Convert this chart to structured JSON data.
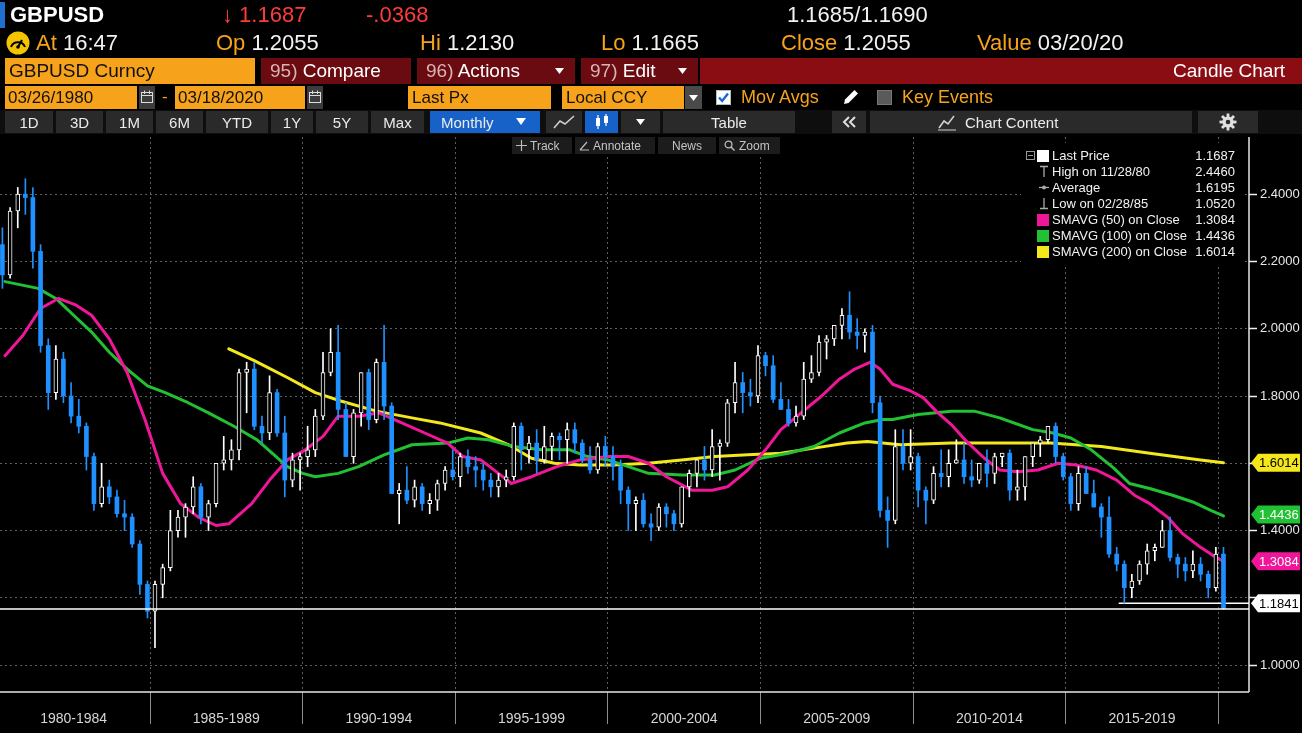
{
  "chart_data": {
    "type": "candlestick",
    "title": "GBPUSD",
    "annotations": [
      "↓ 1.1687",
      "-.0368",
      "1.1685/1.1690",
      "At 16:47",
      "Op 1.2055",
      "Hi 1.2130",
      "Lo 1.1665",
      "Close 1.2055",
      "Value 03/20/20",
      "GBPUSD Curncy",
      "95) Compare",
      "96) Actions",
      "97) Edit",
      "Candle Chart",
      "03/26/1980",
      "-",
      "03/18/2020",
      "Last Px",
      "Local CCY",
      "Mov Avgs",
      "Key Events",
      "1D",
      "3D",
      "1M",
      "6M",
      "YTD",
      "1Y",
      "5Y",
      "Max",
      "Monthly",
      "Table",
      "Chart Content",
      "Track",
      "Annotate",
      "News",
      "Zoom",
      "High on 11/28/80 2.4460",
      "Average 1.6195",
      "Low on 02/28/85 1.0520",
      "1.1687",
      "1.3084",
      "1.4436",
      "1.6014",
      "1.3084",
      "1.4436",
      "1.6014"
    ],
    "xlim": [
      "1980-02",
      "2021-01"
    ],
    "xticks": [
      {
        "value": "1982-07",
        "label": "1980-1984"
      },
      {
        "value": "1985-01",
        "label": null
      },
      {
        "value": "1987-07",
        "label": "1985-1989"
      },
      {
        "value": "1990-01",
        "label": null
      },
      {
        "value": "1992-07",
        "label": "1990-1994"
      },
      {
        "value": "1995-01",
        "label": null
      },
      {
        "value": "1997-07",
        "label": "1995-1999"
      },
      {
        "value": "2000-01",
        "label": null
      },
      {
        "value": "2002-07",
        "label": "2000-2004"
      },
      {
        "value": "2005-01",
        "label": null
      },
      {
        "value": "2007-07",
        "label": "2005-2009"
      },
      {
        "value": "2010-01",
        "label": null
      },
      {
        "value": "2012-07",
        "label": "2010-2014"
      },
      {
        "value": "2015-01",
        "label": null
      },
      {
        "value": "2017-07",
        "label": "2015-2019"
      },
      {
        "value": "2020-01",
        "label": null
      }
    ],
    "ylim": [
      0.92,
      2.57
    ],
    "yticks": [
      {
        "value": 1,
        "label": "1.0000"
      },
      {
        "value": 1.2,
        "label": null
      },
      {
        "value": 1.4,
        "label": "1.4000"
      },
      {
        "value": 1.6,
        "label": null
      },
      {
        "value": 1.8,
        "label": "1.8000"
      },
      {
        "value": 2,
        "label": "2.0000"
      },
      {
        "value": 2.2,
        "label": "2.2000"
      },
      {
        "value": 2.4,
        "label": "2.4000"
      }
    ],
    "grid": true,
    "legend": "top right",
    "ref_lines": [
      {
        "axis": "y",
        "value": 1.167,
        "color": "#ffffff"
      }
    ],
    "series": [
      {
        "name": "Last Price",
        "type": "candlestick",
        "color": "#ffffff",
        "x": [
          "1980-03",
          "1980-06",
          "1980-09",
          "1980-12",
          "1981-03",
          "1981-06",
          "1981-09",
          "1981-12",
          "1982-03",
          "1982-06",
          "1982-09",
          "1982-12",
          "1983-03",
          "1983-06",
          "1983-09",
          "1983-12",
          "1984-03",
          "1984-06",
          "1984-09",
          "1984-12",
          "1985-03",
          "1985-06",
          "1985-09",
          "1985-12",
          "1986-03",
          "1986-06",
          "1986-09",
          "1986-12",
          "1987-03",
          "1987-06",
          "1987-09",
          "1987-12",
          "1988-03",
          "1988-06",
          "1988-09",
          "1988-12",
          "1989-03",
          "1989-06",
          "1989-09",
          "1989-12",
          "1990-03",
          "1990-06",
          "1990-09",
          "1990-12",
          "1991-03",
          "1991-06",
          "1991-09",
          "1991-12",
          "1992-03",
          "1992-06",
          "1992-09",
          "1992-12",
          "1993-03",
          "1993-06",
          "1993-09",
          "1993-12",
          "1994-03",
          "1994-06",
          "1994-09",
          "1994-12",
          "1995-03",
          "1995-06",
          "1995-09",
          "1995-12",
          "1996-03",
          "1996-06",
          "1996-09",
          "1996-12",
          "1997-03",
          "1997-06",
          "1997-09",
          "1997-12",
          "1998-03",
          "1998-06",
          "1998-09",
          "1998-12",
          "1999-03",
          "1999-06",
          "1999-09",
          "1999-12",
          "2000-03",
          "2000-06",
          "2000-09",
          "2000-12",
          "2001-03",
          "2001-06",
          "2001-09",
          "2001-12",
          "2002-03",
          "2002-06",
          "2002-09",
          "2002-12",
          "2003-03",
          "2003-06",
          "2003-09",
          "2003-12",
          "2004-03",
          "2004-06",
          "2004-09",
          "2004-12",
          "2005-03",
          "2005-06",
          "2005-09",
          "2005-12",
          "2006-03",
          "2006-06",
          "2006-09",
          "2006-12",
          "2007-03",
          "2007-06",
          "2007-09",
          "2007-12",
          "2008-03",
          "2008-06",
          "2008-09",
          "2008-12",
          "2009-03",
          "2009-06",
          "2009-09",
          "2009-12",
          "2010-03",
          "2010-06",
          "2010-09",
          "2010-12",
          "2011-03",
          "2011-06",
          "2011-09",
          "2011-12",
          "2012-03",
          "2012-06",
          "2012-09",
          "2012-12",
          "2013-03",
          "2013-06",
          "2013-09",
          "2013-12",
          "2014-03",
          "2014-06",
          "2014-09",
          "2014-12",
          "2015-03",
          "2015-06",
          "2015-09",
          "2015-12",
          "2016-03",
          "2016-06",
          "2016-09",
          "2016-12",
          "2017-03",
          "2017-06",
          "2017-09",
          "2017-12",
          "2018-03",
          "2018-06",
          "2018-09",
          "2018-12",
          "2019-03",
          "2019-06",
          "2019-09",
          "2019-12",
          "2020-03"
        ],
        "ohlc": [
          [
            2.25,
            2.3,
            2.12,
            2.16
          ],
          [
            2.16,
            2.36,
            2.15,
            2.35
          ],
          [
            2.35,
            2.42,
            2.3,
            2.4
          ],
          [
            2.4,
            2.446,
            2.34,
            2.39
          ],
          [
            2.39,
            2.42,
            2.18,
            2.23
          ],
          [
            2.23,
            2.25,
            1.93,
            1.95
          ],
          [
            1.95,
            1.97,
            1.76,
            1.81
          ],
          [
            1.81,
            1.95,
            1.79,
            1.91
          ],
          [
            1.91,
            1.93,
            1.78,
            1.8
          ],
          [
            1.8,
            1.84,
            1.72,
            1.74
          ],
          [
            1.74,
            1.79,
            1.69,
            1.71
          ],
          [
            1.71,
            1.72,
            1.58,
            1.62
          ],
          [
            1.62,
            1.63,
            1.46,
            1.48
          ],
          [
            1.48,
            1.6,
            1.47,
            1.53
          ],
          [
            1.53,
            1.55,
            1.48,
            1.5
          ],
          [
            1.5,
            1.52,
            1.44,
            1.45
          ],
          [
            1.45,
            1.49,
            1.4,
            1.44
          ],
          [
            1.44,
            1.45,
            1.35,
            1.36
          ],
          [
            1.36,
            1.37,
            1.21,
            1.24
          ],
          [
            1.24,
            1.25,
            1.14,
            1.16
          ],
          [
            1.16,
            1.25,
            1.052,
            1.24
          ],
          [
            1.24,
            1.3,
            1.2,
            1.29
          ],
          [
            1.29,
            1.46,
            1.28,
            1.4
          ],
          [
            1.4,
            1.46,
            1.38,
            1.44
          ],
          [
            1.44,
            1.48,
            1.38,
            1.47
          ],
          [
            1.47,
            1.56,
            1.45,
            1.53
          ],
          [
            1.53,
            1.54,
            1.42,
            1.44
          ],
          [
            1.44,
            1.49,
            1.4,
            1.48
          ],
          [
            1.48,
            1.6,
            1.47,
            1.6
          ],
          [
            1.6,
            1.68,
            1.58,
            1.61
          ],
          [
            1.61,
            1.67,
            1.58,
            1.64
          ],
          [
            1.64,
            1.88,
            1.61,
            1.87
          ],
          [
            1.87,
            1.9,
            1.75,
            1.88
          ],
          [
            1.88,
            1.9,
            1.7,
            1.71
          ],
          [
            1.71,
            1.74,
            1.66,
            1.69
          ],
          [
            1.69,
            1.86,
            1.67,
            1.81
          ],
          [
            1.81,
            1.82,
            1.68,
            1.69
          ],
          [
            1.69,
            1.74,
            1.5,
            1.55
          ],
          [
            1.55,
            1.63,
            1.53,
            1.61
          ],
          [
            1.61,
            1.63,
            1.52,
            1.62
          ],
          [
            1.62,
            1.71,
            1.59,
            1.64
          ],
          [
            1.64,
            1.76,
            1.62,
            1.74
          ],
          [
            1.74,
            1.93,
            1.73,
            1.87
          ],
          [
            1.87,
            2.0,
            1.86,
            1.93
          ],
          [
            1.93,
            2.01,
            1.73,
            1.76
          ],
          [
            1.76,
            1.78,
            1.62,
            1.62
          ],
          [
            1.62,
            1.76,
            1.6,
            1.75
          ],
          [
            1.75,
            1.87,
            1.71,
            1.87
          ],
          [
            1.87,
            1.88,
            1.7,
            1.73
          ],
          [
            1.73,
            1.91,
            1.72,
            1.9
          ],
          [
            1.9,
            2.01,
            1.73,
            1.77
          ],
          [
            1.77,
            1.78,
            1.51,
            1.51
          ],
          [
            1.51,
            1.54,
            1.42,
            1.52
          ],
          [
            1.52,
            1.59,
            1.48,
            1.49
          ],
          [
            1.49,
            1.55,
            1.47,
            1.53
          ],
          [
            1.53,
            1.54,
            1.46,
            1.48
          ],
          [
            1.48,
            1.51,
            1.45,
            1.49
          ],
          [
            1.49,
            1.55,
            1.46,
            1.54
          ],
          [
            1.54,
            1.59,
            1.52,
            1.58
          ],
          [
            1.58,
            1.64,
            1.55,
            1.56
          ],
          [
            1.56,
            1.63,
            1.53,
            1.62
          ],
          [
            1.62,
            1.64,
            1.57,
            1.59
          ],
          [
            1.59,
            1.62,
            1.53,
            1.58
          ],
          [
            1.58,
            1.6,
            1.52,
            1.55
          ],
          [
            1.55,
            1.57,
            1.5,
            1.53
          ],
          [
            1.53,
            1.57,
            1.5,
            1.55
          ],
          [
            1.55,
            1.58,
            1.53,
            1.56
          ],
          [
            1.56,
            1.72,
            1.55,
            1.71
          ],
          [
            1.71,
            1.72,
            1.58,
            1.64
          ],
          [
            1.64,
            1.68,
            1.6,
            1.66
          ],
          [
            1.66,
            1.7,
            1.57,
            1.61
          ],
          [
            1.61,
            1.71,
            1.6,
            1.65
          ],
          [
            1.65,
            1.69,
            1.61,
            1.68
          ],
          [
            1.68,
            1.69,
            1.61,
            1.67
          ],
          [
            1.67,
            1.72,
            1.6,
            1.7
          ],
          [
            1.7,
            1.72,
            1.63,
            1.66
          ],
          [
            1.66,
            1.67,
            1.6,
            1.61
          ],
          [
            1.61,
            1.65,
            1.57,
            1.58
          ],
          [
            1.58,
            1.66,
            1.57,
            1.65
          ],
          [
            1.65,
            1.68,
            1.59,
            1.62
          ],
          [
            1.62,
            1.65,
            1.55,
            1.59
          ],
          [
            1.59,
            1.61,
            1.48,
            1.52
          ],
          [
            1.52,
            1.53,
            1.4,
            1.48
          ],
          [
            1.48,
            1.5,
            1.4,
            1.49
          ],
          [
            1.49,
            1.51,
            1.41,
            1.42
          ],
          [
            1.42,
            1.45,
            1.37,
            1.41
          ],
          [
            1.41,
            1.48,
            1.4,
            1.47
          ],
          [
            1.47,
            1.48,
            1.41,
            1.45
          ],
          [
            1.45,
            1.46,
            1.4,
            1.42
          ],
          [
            1.42,
            1.53,
            1.41,
            1.53
          ],
          [
            1.53,
            1.58,
            1.5,
            1.57
          ],
          [
            1.57,
            1.61,
            1.53,
            1.61
          ],
          [
            1.61,
            1.65,
            1.55,
            1.58
          ],
          [
            1.58,
            1.7,
            1.56,
            1.65
          ],
          [
            1.65,
            1.67,
            1.55,
            1.66
          ],
          [
            1.66,
            1.79,
            1.65,
            1.78
          ],
          [
            1.78,
            1.9,
            1.75,
            1.84
          ],
          [
            1.84,
            1.87,
            1.75,
            1.81
          ],
          [
            1.81,
            1.85,
            1.77,
            1.8
          ],
          [
            1.8,
            1.95,
            1.78,
            1.92
          ],
          [
            1.92,
            1.93,
            1.86,
            1.89
          ],
          [
            1.89,
            1.92,
            1.78,
            1.79
          ],
          [
            1.79,
            1.84,
            1.76,
            1.76
          ],
          [
            1.76,
            1.79,
            1.71,
            1.72
          ],
          [
            1.72,
            1.77,
            1.71,
            1.74
          ],
          [
            1.74,
            1.9,
            1.73,
            1.85
          ],
          [
            1.85,
            1.92,
            1.84,
            1.87
          ],
          [
            1.87,
            1.98,
            1.86,
            1.96
          ],
          [
            1.96,
            1.98,
            1.91,
            1.97
          ],
          [
            1.97,
            2.01,
            1.95,
            2.01
          ],
          [
            2.01,
            2.06,
            1.97,
            2.04
          ],
          [
            2.04,
            2.11,
            1.97,
            1.99
          ],
          [
            1.99,
            2.03,
            1.94,
            1.98
          ],
          [
            1.98,
            2.0,
            1.93,
            1.99
          ],
          [
            1.99,
            2.01,
            1.75,
            1.78
          ],
          [
            1.78,
            1.8,
            1.44,
            1.46
          ],
          [
            1.46,
            1.5,
            1.35,
            1.43
          ],
          [
            1.43,
            1.7,
            1.42,
            1.65
          ],
          [
            1.65,
            1.7,
            1.58,
            1.6
          ],
          [
            1.6,
            1.7,
            1.58,
            1.62
          ],
          [
            1.62,
            1.63,
            1.47,
            1.52
          ],
          [
            1.52,
            1.53,
            1.42,
            1.49
          ],
          [
            1.49,
            1.59,
            1.48,
            1.57
          ],
          [
            1.57,
            1.64,
            1.53,
            1.56
          ],
          [
            1.56,
            1.64,
            1.53,
            1.6
          ],
          [
            1.6,
            1.67,
            1.6,
            1.61
          ],
          [
            1.61,
            1.66,
            1.54,
            1.56
          ],
          [
            1.56,
            1.61,
            1.53,
            1.55
          ],
          [
            1.55,
            1.6,
            1.54,
            1.6
          ],
          [
            1.6,
            1.64,
            1.53,
            1.57
          ],
          [
            1.57,
            1.63,
            1.54,
            1.62
          ],
          [
            1.62,
            1.63,
            1.59,
            1.63
          ],
          [
            1.63,
            1.64,
            1.49,
            1.52
          ],
          [
            1.52,
            1.58,
            1.49,
            1.53
          ],
          [
            1.53,
            1.62,
            1.49,
            1.62
          ],
          [
            1.62,
            1.66,
            1.59,
            1.66
          ],
          [
            1.66,
            1.68,
            1.62,
            1.67
          ],
          [
            1.67,
            1.71,
            1.66,
            1.71
          ],
          [
            1.71,
            1.72,
            1.6,
            1.62
          ],
          [
            1.62,
            1.63,
            1.55,
            1.56
          ],
          [
            1.56,
            1.57,
            1.46,
            1.48
          ],
          [
            1.48,
            1.59,
            1.46,
            1.57
          ],
          [
            1.57,
            1.59,
            1.51,
            1.51
          ],
          [
            1.51,
            1.55,
            1.47,
            1.47
          ],
          [
            1.47,
            1.48,
            1.38,
            1.44
          ],
          [
            1.44,
            1.5,
            1.32,
            1.33
          ],
          [
            1.33,
            1.35,
            1.28,
            1.3
          ],
          [
            1.3,
            1.31,
            1.184,
            1.23
          ],
          [
            1.23,
            1.27,
            1.2,
            1.25
          ],
          [
            1.25,
            1.31,
            1.24,
            1.3
          ],
          [
            1.3,
            1.36,
            1.27,
            1.34
          ],
          [
            1.34,
            1.36,
            1.31,
            1.35
          ],
          [
            1.35,
            1.43,
            1.35,
            1.4
          ],
          [
            1.4,
            1.44,
            1.31,
            1.32
          ],
          [
            1.32,
            1.33,
            1.26,
            1.3
          ],
          [
            1.3,
            1.32,
            1.25,
            1.28
          ],
          [
            1.28,
            1.34,
            1.26,
            1.3
          ],
          [
            1.3,
            1.32,
            1.25,
            1.27
          ],
          [
            1.27,
            1.28,
            1.2,
            1.23
          ],
          [
            1.23,
            1.35,
            1.22,
            1.33
          ],
          [
            1.33,
            1.35,
            1.1665,
            1.1687
          ]
        ],
        "colors": [
          "#1e90ff",
          "#ffffff",
          "#ffffff",
          "#1e90ff",
          "#1e90ff",
          "#1e90ff",
          "#1e90ff",
          "#ffffff",
          "#1e90ff",
          "#1e90ff",
          "#1e90ff",
          "#1e90ff",
          "#1e90ff",
          "#ffffff",
          "#1e90ff",
          "#1e90ff",
          "#1e90ff",
          "#1e90ff",
          "#1e90ff",
          "#1e90ff",
          "#ffffff",
          "#ffffff",
          "#ffffff",
          "#ffffff",
          "#ffffff",
          "#ffffff",
          "#1e90ff",
          "#ffffff",
          "#ffffff",
          "#ffffff",
          "#ffffff",
          "#ffffff",
          "#ffffff",
          "#1e90ff",
          "#1e90ff",
          "#ffffff",
          "#1e90ff",
          "#1e90ff",
          "#ffffff",
          "#ffffff",
          "#ffffff",
          "#ffffff",
          "#ffffff",
          "#ffffff",
          "#1e90ff",
          "#1e90ff",
          "#ffffff",
          "#ffffff",
          "#1e90ff",
          "#ffffff",
          "#1e90ff",
          "#1e90ff",
          "#ffffff",
          "#1e90ff",
          "#ffffff",
          "#1e90ff",
          "#ffffff",
          "#ffffff",
          "#ffffff",
          "#1e90ff",
          "#ffffff",
          "#1e90ff",
          "#1e90ff",
          "#1e90ff",
          "#1e90ff",
          "#ffffff",
          "#ffffff",
          "#ffffff",
          "#1e90ff",
          "#ffffff",
          "#1e90ff",
          "#ffffff",
          "#ffffff",
          "#1e90ff",
          "#ffffff",
          "#1e90ff",
          "#1e90ff",
          "#1e90ff",
          "#ffffff",
          "#1e90ff",
          "#1e90ff",
          "#1e90ff",
          "#1e90ff",
          "#ffffff",
          "#1e90ff",
          "#1e90ff",
          "#ffffff",
          "#1e90ff",
          "#1e90ff",
          "#ffffff",
          "#ffffff",
          "#ffffff",
          "#1e90ff",
          "#ffffff",
          "#ffffff",
          "#ffffff",
          "#ffffff",
          "#1e90ff",
          "#1e90ff",
          "#ffffff",
          "#1e90ff",
          "#1e90ff",
          "#1e90ff",
          "#1e90ff",
          "#ffffff",
          "#ffffff",
          "#ffffff",
          "#ffffff",
          "#ffffff",
          "#ffffff",
          "#ffffff",
          "#1e90ff",
          "#1e90ff",
          "#ffffff",
          "#1e90ff",
          "#1e90ff",
          "#1e90ff",
          "#ffffff",
          "#1e90ff",
          "#ffffff",
          "#1e90ff",
          "#1e90ff",
          "#ffffff",
          "#1e90ff",
          "#ffffff",
          "#ffffff",
          "#1e90ff",
          "#1e90ff",
          "#ffffff",
          "#1e90ff",
          "#ffffff",
          "#ffffff",
          "#1e90ff",
          "#ffffff",
          "#ffffff",
          "#ffffff",
          "#ffffff",
          "#ffffff",
          "#1e90ff",
          "#1e90ff",
          "#1e90ff",
          "#ffffff",
          "#1e90ff",
          "#1e90ff",
          "#1e90ff",
          "#1e90ff",
          "#1e90ff",
          "#1e90ff",
          "#ffffff",
          "#ffffff",
          "#ffffff",
          "#ffffff",
          "#ffffff",
          "#1e90ff",
          "#1e90ff",
          "#1e90ff",
          "#ffffff",
          "#1e90ff",
          "#1e90ff",
          "#ffffff",
          "#1e90ff"
        ]
      },
      {
        "name": "SMAVG (50) on Close",
        "type": "line",
        "color": "#f0169a",
        "x": [
          "1980-04",
          "1980-11",
          "1981-06",
          "1982-01",
          "1982-08",
          "1983-02",
          "1983-09",
          "1984-04",
          "1984-11",
          "1985-06",
          "1986-01",
          "1986-08",
          "1987-03",
          "1987-08",
          "1988-05",
          "1988-12",
          "1989-07",
          "1990-02",
          "1990-09",
          "1991-03",
          "1991-11",
          "1992-07",
          "1993-04",
          "1994-01",
          "1994-10",
          "1995-04",
          "1995-11",
          "1996-06",
          "1996-11",
          "1997-07",
          "1998-05",
          "1999-02",
          "2000-01",
          "2000-09",
          "2001-05",
          "2001-12",
          "2002-10",
          "2003-06",
          "2003-12",
          "2004-08",
          "2005-03",
          "2005-09",
          "2006-05",
          "2007-01",
          "2007-08",
          "2008-02",
          "2008-08",
          "2008-12",
          "2009-05",
          "2009-12",
          "2010-05",
          "2010-10",
          "2011-04",
          "2011-10",
          "2012-05",
          "2012-11",
          "2013-06",
          "2014-02",
          "2014-10",
          "2015-05",
          "2016-01",
          "2016-09",
          "2017-04",
          "2017-10",
          "2018-05",
          "2018-11",
          "2019-06",
          "2019-11",
          "2020-03"
        ],
        "values": [
          1.92,
          1.98,
          2.06,
          2.09,
          2.07,
          2.04,
          1.97,
          1.87,
          1.73,
          1.57,
          1.48,
          1.44,
          1.415,
          1.42,
          1.48,
          1.55,
          1.61,
          1.64,
          1.68,
          1.74,
          1.74,
          1.75,
          1.72,
          1.69,
          1.66,
          1.62,
          1.61,
          1.57,
          1.54,
          1.56,
          1.59,
          1.61,
          1.62,
          1.62,
          1.6,
          1.56,
          1.52,
          1.52,
          1.53,
          1.58,
          1.64,
          1.7,
          1.75,
          1.8,
          1.85,
          1.88,
          1.9,
          1.88,
          1.835,
          1.815,
          1.795,
          1.755,
          1.715,
          1.665,
          1.615,
          1.58,
          1.575,
          1.58,
          1.6,
          1.595,
          1.58,
          1.55,
          1.505,
          1.48,
          1.44,
          1.39,
          1.35,
          1.325,
          1.3084
        ]
      },
      {
        "name": "SMAVG (100) on Close",
        "type": "line",
        "color": "#22c033",
        "x": [
          "1980-04",
          "1981-05",
          "1981-12",
          "1982-07",
          "1983-02",
          "1983-09",
          "1984-04",
          "1984-12",
          "1985-07",
          "1986-04",
          "1986-12",
          "1987-10",
          "1988-07",
          "1989-01",
          "1989-07",
          "1990-01",
          "1990-06",
          "1991-03",
          "1991-11",
          "1992-09",
          "1993-08",
          "1994-10",
          "1995-06",
          "1996-02",
          "1996-12",
          "1997-11",
          "1998-10",
          "1999-05",
          "2000-01",
          "2000-09",
          "2001-05",
          "2002-06",
          "2003-07",
          "2004-03",
          "2005-01",
          "2005-12",
          "2006-10",
          "2007-08",
          "2008-06",
          "2009-01",
          "2009-05",
          "2010-03",
          "2011-04",
          "2012-01",
          "2012-11",
          "2013-12",
          "2014-08",
          "2015-03",
          "2015-11",
          "2016-08",
          "2017-02",
          "2017-10",
          "2018-07",
          "2019-03",
          "2019-10",
          "2020-03"
        ],
        "values": [
          2.14,
          2.12,
          2.09,
          2.04,
          1.99,
          1.93,
          1.88,
          1.83,
          1.81,
          1.78,
          1.75,
          1.71,
          1.67,
          1.63,
          1.59,
          1.57,
          1.56,
          1.57,
          1.59,
          1.625,
          1.655,
          1.66,
          1.675,
          1.67,
          1.65,
          1.64,
          1.64,
          1.62,
          1.61,
          1.59,
          1.57,
          1.565,
          1.565,
          1.58,
          1.615,
          1.63,
          1.65,
          1.69,
          1.72,
          1.73,
          1.73,
          1.745,
          1.755,
          1.755,
          1.735,
          1.7,
          1.69,
          1.675,
          1.64,
          1.585,
          1.54,
          1.525,
          1.505,
          1.485,
          1.46,
          1.4436
        ]
      },
      {
        "name": "SMAVG (200) on Close",
        "type": "line",
        "color": "#f4e81c",
        "x": [
          "1987-08",
          "1988-06",
          "1989-07",
          "1990-06",
          "1991-04",
          "1992-06",
          "1993-08",
          "1994-07",
          "1995-11",
          "1996-10",
          "1997-07",
          "1998-04",
          "1999-02",
          "2000-03",
          "2001-05",
          "2002-06",
          "2003-07",
          "2004-08",
          "2005-09",
          "2006-10",
          "2007-11",
          "2008-07",
          "2009-08",
          "2011-04",
          "2012-12",
          "2014-07",
          "2016-03",
          "2017-10",
          "2019-06",
          "2020-03"
        ],
        "values": [
          1.94,
          1.905,
          1.855,
          1.81,
          1.785,
          1.755,
          1.735,
          1.72,
          1.69,
          1.655,
          1.615,
          1.6,
          1.595,
          1.595,
          1.6,
          1.61,
          1.62,
          1.625,
          1.63,
          1.645,
          1.66,
          1.665,
          1.655,
          1.66,
          1.66,
          1.66,
          1.65,
          1.63,
          1.61,
          1.6014
        ]
      },
      {
        "type": "line",
        "color": "#ffffff",
        "x": [
          "2016-10",
          "2021-01"
        ],
        "values": [
          1.1841,
          1.1841
        ],
        "value_labels": [
          null,
          "1.1841"
        ]
      }
    ]
  }
}
